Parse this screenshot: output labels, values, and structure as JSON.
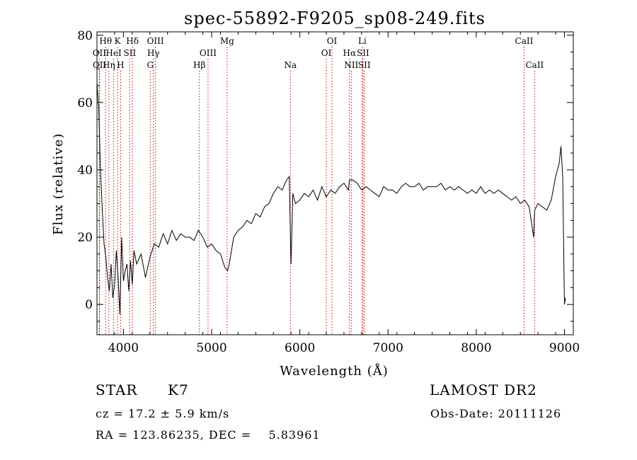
{
  "chart_data": {
    "type": "line",
    "title": "spec-55892-F9205_sp08-249.fits",
    "xlabel": "Wavelength (Å)",
    "ylabel": "Flux (relative)",
    "xlim": [
      3700,
      9100
    ],
    "ylim": [
      -9,
      81
    ],
    "xticks": [
      4000,
      5000,
      6000,
      7000,
      8000,
      9000
    ],
    "yticks": [
      0,
      20,
      40,
      60,
      80
    ],
    "grid": false,
    "series": [
      {
        "color": "#000000",
        "x": [
          3700,
          3720,
          3740,
          3760,
          3780,
          3800,
          3820,
          3840,
          3860,
          3880,
          3900,
          3920,
          3940,
          3960,
          3980,
          4000,
          4020,
          4040,
          4060,
          4080,
          4100,
          4120,
          4150,
          4200,
          4250,
          4300,
          4350,
          4400,
          4450,
          4500,
          4550,
          4600,
          4650,
          4700,
          4750,
          4800,
          4850,
          4900,
          4950,
          5000,
          5050,
          5100,
          5150,
          5180,
          5200,
          5250,
          5300,
          5350,
          5400,
          5450,
          5500,
          5550,
          5600,
          5650,
          5700,
          5750,
          5800,
          5850,
          5880,
          5890,
          5900,
          5920,
          5950,
          6000,
          6050,
          6100,
          6150,
          6200,
          6250,
          6300,
          6350,
          6400,
          6450,
          6500,
          6550,
          6563,
          6600,
          6650,
          6700,
          6750,
          6800,
          6850,
          6900,
          6950,
          7000,
          7050,
          7100,
          7150,
          7200,
          7250,
          7300,
          7350,
          7400,
          7450,
          7500,
          7550,
          7600,
          7650,
          7700,
          7750,
          7800,
          7850,
          7900,
          7950,
          8000,
          8050,
          8100,
          8150,
          8200,
          8250,
          8300,
          8350,
          8400,
          8450,
          8500,
          8550,
          8600,
          8650,
          8662,
          8700,
          8750,
          8800,
          8850,
          8900,
          8940,
          8960,
          8980,
          9000,
          9010
        ],
        "y": [
          66,
          58,
          40,
          28,
          18,
          14,
          8,
          4,
          12,
          2,
          6,
          16,
          8,
          -3,
          20,
          7,
          10,
          12,
          4,
          13,
          6,
          16,
          12,
          15,
          8,
          14,
          18,
          17,
          21,
          18,
          22,
          19,
          21,
          20,
          20,
          19,
          22,
          20,
          17,
          18,
          16,
          15,
          11,
          10,
          12,
          20,
          22,
          23,
          25,
          24,
          27,
          26,
          29,
          30,
          33,
          35,
          34,
          37,
          38,
          25,
          12,
          33,
          30,
          31,
          33,
          32,
          34,
          31,
          35,
          32,
          34,
          33,
          35,
          36,
          34,
          37,
          37,
          36,
          34,
          35,
          34,
          33,
          32,
          35,
          34,
          34,
          33,
          35,
          36,
          35,
          35,
          36,
          34,
          35,
          35,
          35,
          36,
          34,
          35,
          34,
          35,
          34,
          33,
          34,
          33,
          35,
          33,
          34,
          33,
          34,
          33,
          32,
          31,
          32,
          30,
          31,
          29,
          20,
          28,
          30,
          29,
          28,
          31,
          38,
          42,
          47,
          38,
          0,
          2
        ]
      }
    ],
    "line_markers": [
      {
        "label": "Hθ",
        "x": 3798,
        "row": 0,
        "color": "#d00000"
      },
      {
        "label": "K",
        "x": 3934,
        "row": 0,
        "color": "#d00000"
      },
      {
        "label": "Hδ",
        "x": 4102,
        "row": 0,
        "color": "#d00000"
      },
      {
        "label": "OIII",
        "x": 4363,
        "row": 0,
        "color": "#d00000"
      },
      {
        "label": "Mg",
        "x": 5175,
        "row": 0,
        "color": "#d00000"
      },
      {
        "label": "OI",
        "x": 6364,
        "row": 0,
        "color": "#d00000"
      },
      {
        "label": "Li",
        "x": 6708,
        "row": 0,
        "color": "#d00000"
      },
      {
        "label": "CaII",
        "x": 8542,
        "row": 0,
        "color": "#d00000"
      },
      {
        "label": "OII",
        "x": 3727,
        "row": 1,
        "color": "#d00000"
      },
      {
        "label": "HeI",
        "x": 3889,
        "row": 1,
        "color": "#d00000"
      },
      {
        "label": "SII",
        "x": 4072,
        "row": 1,
        "color": "#d00000"
      },
      {
        "label": "Hγ",
        "x": 4340,
        "row": 1,
        "color": "#d00000"
      },
      {
        "label": "OIII",
        "x": 4959,
        "row": 1,
        "color": "#d00000"
      },
      {
        "label": "OI",
        "x": 6300,
        "row": 1,
        "color": "#d00000"
      },
      {
        "label": "Hα",
        "x": 6563,
        "row": 1,
        "color": "#d00000"
      },
      {
        "label": "SII",
        "x": 6716,
        "row": 1,
        "color": "#d00000"
      },
      {
        "label": "OII",
        "x": 3729,
        "row": 2,
        "color": "#d00000"
      },
      {
        "label": "Hη",
        "x": 3835,
        "row": 2,
        "color": "#d00000"
      },
      {
        "label": "H",
        "x": 3968,
        "row": 2,
        "color": "#d00000"
      },
      {
        "label": "G",
        "x": 4304,
        "row": 2,
        "color": "#d00000"
      },
      {
        "label": "Hβ",
        "x": 4861,
        "row": 2,
        "color": "#d00000"
      },
      {
        "label": "Na",
        "x": 5893,
        "row": 2,
        "color": "#d00000"
      },
      {
        "label": "NII",
        "x": 6583,
        "row": 2,
        "color": "#d00000"
      },
      {
        "label": "SII",
        "x": 6731,
        "row": 2,
        "color": "#d00000"
      },
      {
        "label": "CaII",
        "x": 8662,
        "row": 2,
        "color": "#d00000"
      }
    ]
  },
  "info": {
    "class_label": "STAR",
    "subclass": "K7",
    "survey": "LAMOST DR2",
    "cz": "cz = 17.2 ± 5.9 km/s",
    "obs_date": "Obs-Date: 20111126",
    "coords": "RA = 123.86235, DEC =    5.83961"
  }
}
